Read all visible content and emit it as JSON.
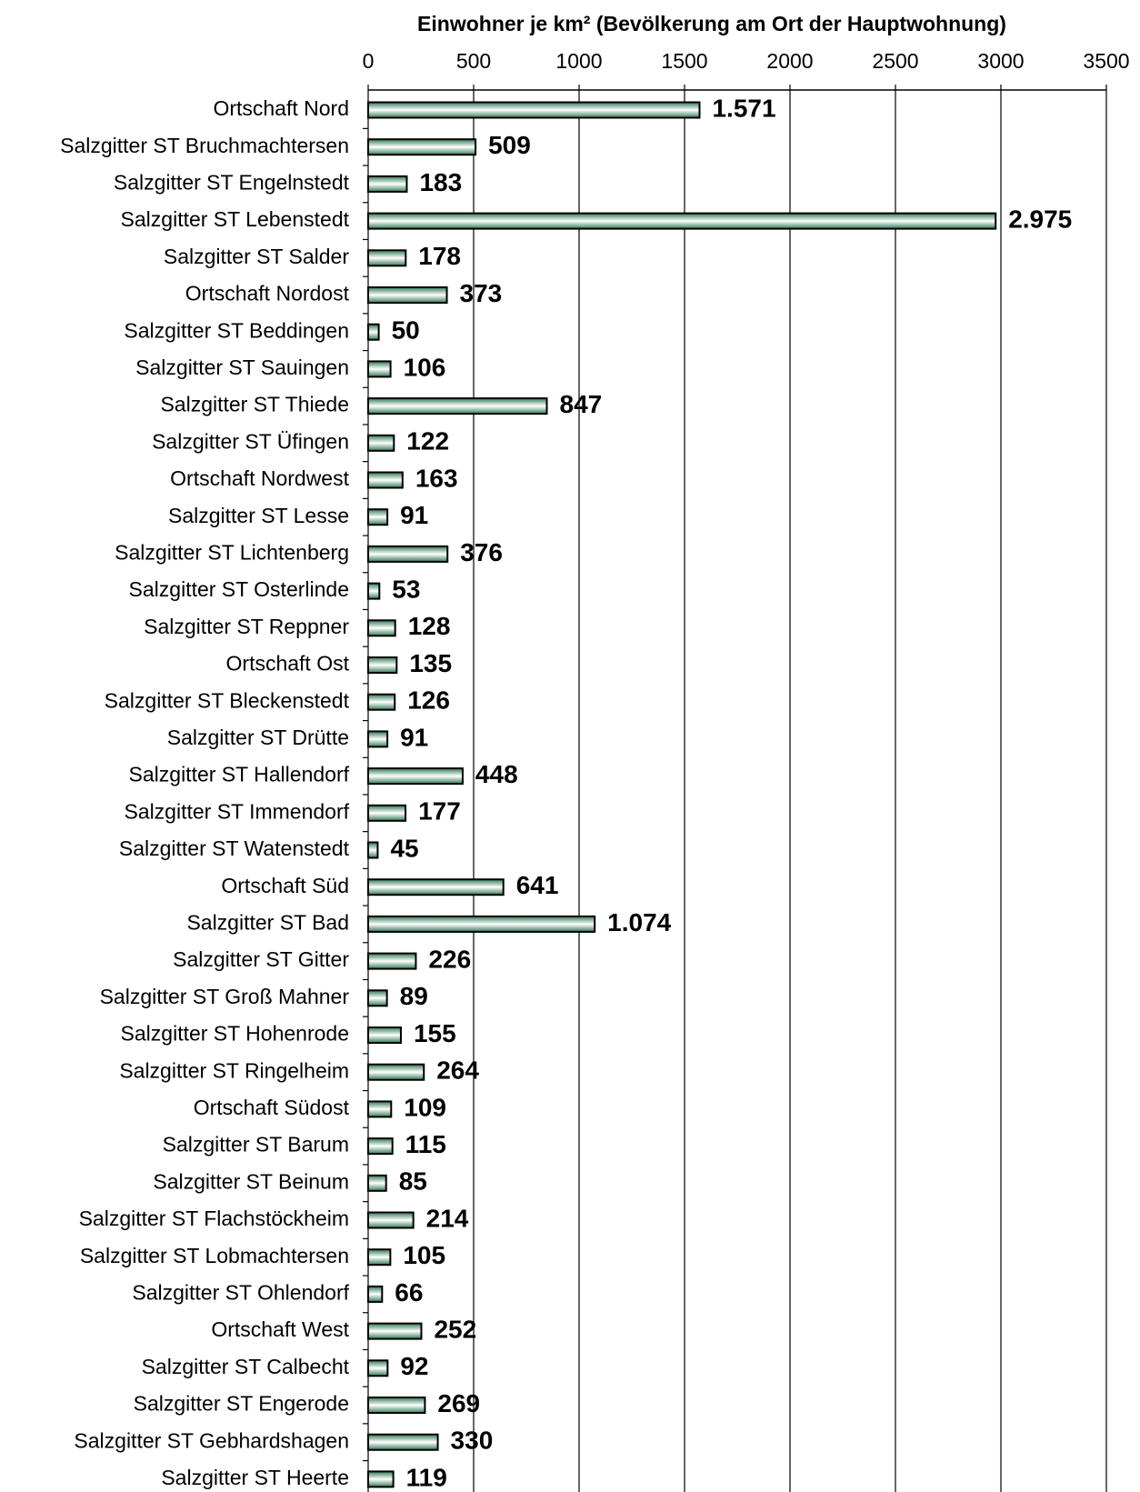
{
  "chart_data": {
    "type": "bar",
    "orientation": "horizontal",
    "title": "Einwohner je km² (Bevölkerung am Ort der Hauptwohnung)",
    "categories": [
      "Ortschaft Nord",
      "Salzgitter ST Bruchmachtersen",
      "Salzgitter ST Engelnstedt",
      "Salzgitter ST Lebenstedt",
      "Salzgitter ST Salder",
      "Ortschaft Nordost",
      "Salzgitter ST Beddingen",
      "Salzgitter ST Sauingen",
      "Salzgitter ST Thiede",
      "Salzgitter ST Üfingen",
      "Ortschaft Nordwest",
      "Salzgitter ST Lesse",
      "Salzgitter ST Lichtenberg",
      "Salzgitter ST Osterlinde",
      "Salzgitter ST Reppner",
      "Ortschaft Ost",
      "Salzgitter ST Bleckenstedt",
      "Salzgitter ST Drütte",
      "Salzgitter ST Hallendorf",
      "Salzgitter ST Immendorf",
      "Salzgitter ST Watenstedt",
      "Ortschaft Süd",
      "Salzgitter ST Bad",
      "Salzgitter ST Gitter",
      "Salzgitter ST Groß Mahner",
      "Salzgitter ST Hohenrode",
      "Salzgitter ST Ringelheim",
      "Ortschaft Südost",
      "Salzgitter ST Barum",
      "Salzgitter ST Beinum",
      "Salzgitter ST Flachstöckheim",
      "Salzgitter ST Lobmachtersen",
      "Salzgitter ST Ohlendorf",
      "Ortschaft West",
      "Salzgitter ST Calbecht",
      "Salzgitter ST Engerode",
      "Salzgitter ST Gebhardshagen",
      "Salzgitter ST Heerte"
    ],
    "values": [
      1571,
      509,
      183,
      2975,
      178,
      373,
      50,
      106,
      847,
      122,
      163,
      91,
      376,
      53,
      128,
      135,
      126,
      91,
      448,
      177,
      45,
      641,
      1074,
      226,
      89,
      155,
      264,
      109,
      115,
      85,
      214,
      105,
      66,
      252,
      92,
      269,
      330,
      119
    ],
    "value_labels": [
      "1.571",
      "509",
      "183",
      "2.975",
      "178",
      "373",
      "50",
      "106",
      "847",
      "122",
      "163",
      "91",
      "376",
      "53",
      "128",
      "135",
      "126",
      "91",
      "448",
      "177",
      "45",
      "641",
      "1.074",
      "226",
      "89",
      "155",
      "264",
      "109",
      "115",
      "85",
      "214",
      "105",
      "66",
      "252",
      "92",
      "269",
      "330",
      "119"
    ],
    "color": "#2f7a55",
    "xlim": [
      0,
      3500
    ],
    "xticks": [
      0,
      500,
      1000,
      1500,
      2000,
      2500,
      3000,
      3500
    ],
    "grid": true
  }
}
